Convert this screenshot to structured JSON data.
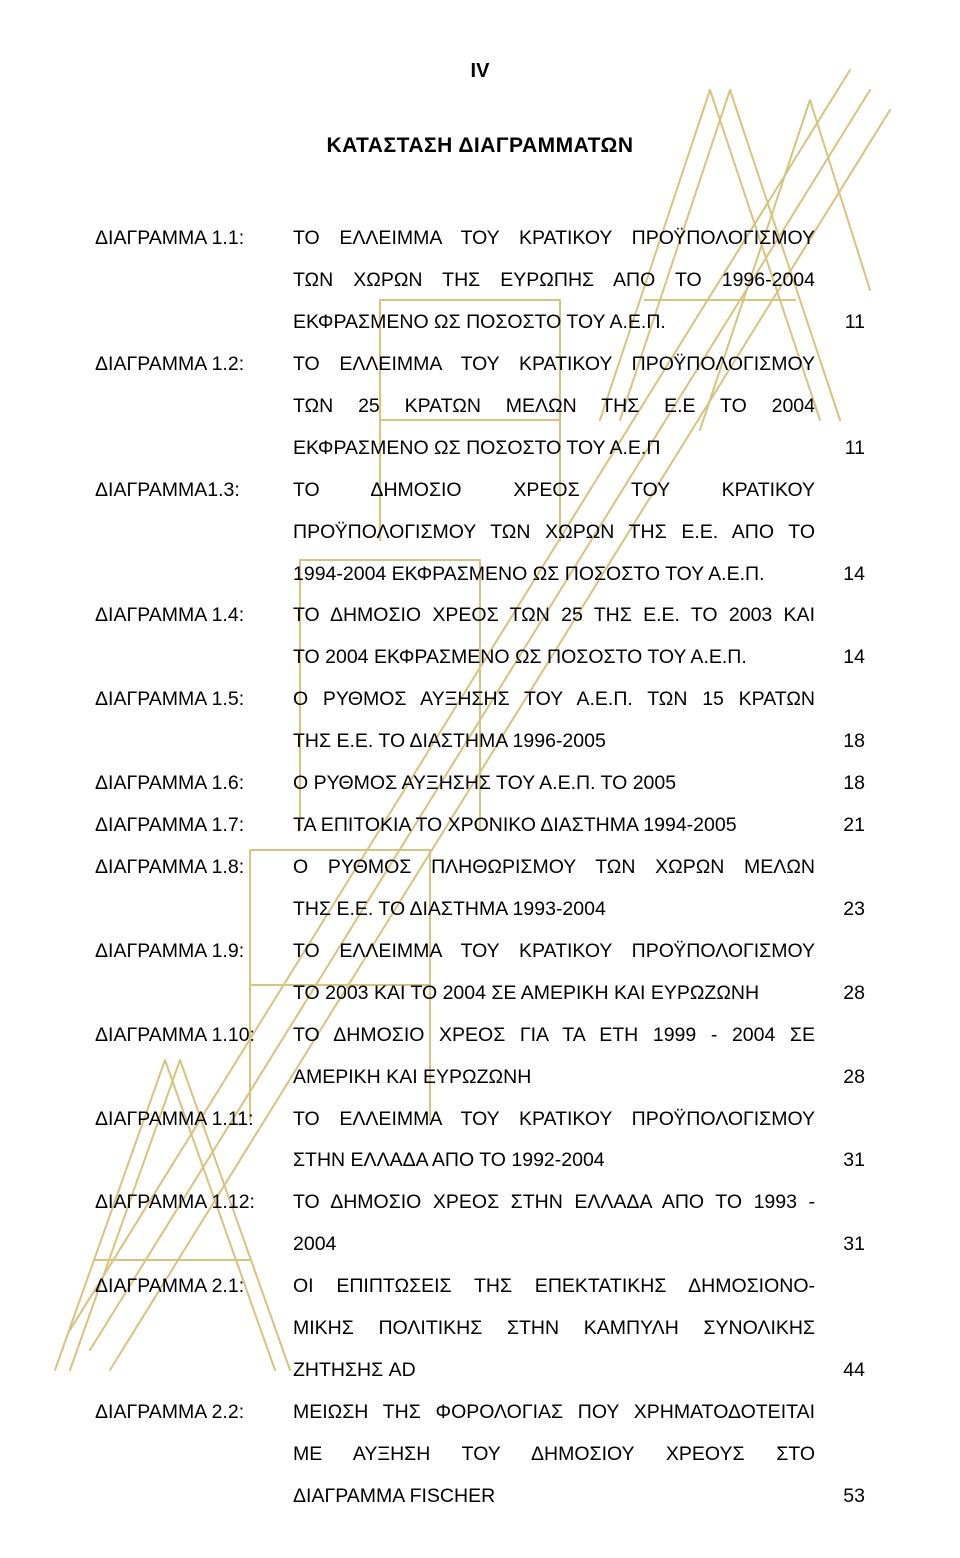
{
  "page_number_roman": "IV",
  "title": "ΚΑΤΑΣΤΑΣΗ ΔΙΑΓΡΑΜΜΑΤΩΝ",
  "watermark": {
    "stroke": "#d9c27a",
    "stroke_width": 2
  },
  "entries": [
    {
      "label": "ΔΙΑΓΡΑΜΜΑ 1.1:",
      "lines": [
        "ΤΟ ΕΛΛΕΙΜΜΑ ΤΟΥ ΚΡΑΤΙΚΟΥ ΠΡΟΫΠΟΛΟΓΙΣΜΟΥ",
        "ΤΩΝ ΧΩΡΩΝ ΤΗΣ ΕΥΡΩΠΗΣ ΑΠΟ ΤΟ 1996-2004",
        "ΕΚΦΡΑΣΜΕΝΟ ΩΣ ΠΟΣΟΣΤΟ ΤΟΥ Α.Ε.Π."
      ],
      "page": "11"
    },
    {
      "label": "ΔΙΑΓΡΑΜΜΑ 1.2:",
      "lines": [
        "ΤΟ ΕΛΛΕΙΜΜΑ ΤΟΥ ΚΡΑΤΙΚΟΥ ΠΡΟΫΠΟΛΟΓΙΣΜΟΥ",
        "ΤΩΝ 25 ΚΡΑΤΩΝ ΜΕΛΩΝ ΤΗΣ Ε.Ε ΤΟ 2004",
        "ΕΚΦΡΑΣΜΕΝΟ ΩΣ ΠΟΣΟΣΤΟ ΤΟΥ Α.Ε.Π"
      ],
      "page": "11"
    },
    {
      "label": "ΔΙΑΓΡΑΜΜΑ1.3:",
      "lines": [
        "ΤΟ ΔΗΜΟΣΙΟ ΧΡΕΟΣ ΤΟΥ ΚΡΑΤΙΚΟΥ",
        "ΠΡΟΫΠΟΛΟΓΙΣΜΟΥ ΤΩΝ ΧΩΡΩΝ ΤΗΣ Ε.Ε. ΑΠΟ ΤΟ",
        "1994-2004 ΕΚΦΡΑΣΜΕΝΟ ΩΣ ΠΟΣΟΣΤΟ ΤΟΥ Α.Ε.Π."
      ],
      "page": "14"
    },
    {
      "label": "ΔΙΑΓΡΑΜΜΑ 1.4:",
      "lines": [
        "ΤΟ ΔΗΜΟΣΙΟ ΧΡΕΟΣ ΤΩΝ 25 ΤΗΣ Ε.Ε. ΤΟ 2003 ΚΑΙ",
        "ΤΟ 2004 ΕΚΦΡΑΣΜΕΝΟ ΩΣ ΠΟΣΟΣΤΟ ΤΟΥ Α.Ε.Π."
      ],
      "page": "14"
    },
    {
      "label": "ΔΙΑΓΡΑΜΜΑ 1.5:",
      "lines": [
        "Ο ΡΥΘΜΟΣ ΑΥΞΗΣΗΣ ΤΟΥ Α.Ε.Π. ΤΩΝ 15 ΚΡΑΤΩΝ",
        "ΤΗΣ Ε.Ε. ΤΟ ΔΙΑΣΤΗΜΑ 1996-2005"
      ],
      "page": "18"
    },
    {
      "label": "ΔΙΑΓΡΑΜΜΑ 1.6:",
      "lines": [
        "Ο ΡΥΘΜΟΣ ΑΥΞΗΣΗΣ ΤΟΥ Α.Ε.Π. ΤΟ 2005"
      ],
      "page": "18"
    },
    {
      "label": "ΔΙΑΓΡΑΜΜΑ 1.7:",
      "lines": [
        "ΤΑ ΕΠΙΤΟΚΙΑ ΤΟ ΧΡΟΝΙΚΟ ΔΙΑΣΤΗΜΑ 1994-2005"
      ],
      "page": "21"
    },
    {
      "label": "ΔΙΑΓΡΑΜΜΑ 1.8:",
      "lines": [
        "Ο ΡΥΘΜΟΣ ΠΛΗΘΩΡΙΣΜΟΥ ΤΩΝ ΧΩΡΩΝ ΜΕΛΩΝ",
        "ΤΗΣ Ε.Ε. ΤΟ ΔΙΑΣΤΗΜΑ 1993-2004"
      ],
      "page": "23"
    },
    {
      "label": "ΔΙΑΓΡΑΜΜΑ 1.9:",
      "lines": [
        "ΤΟ ΕΛΛΕΙΜΜΑ ΤΟΥ ΚΡΑΤΙΚΟΥ ΠΡΟΫΠΟΛΟΓΙΣΜΟΥ",
        "ΤΟ 2003 ΚΑΙ ΤΟ 2004 ΣΕ ΑΜΕΡΙΚΗ ΚΑΙ ΕΥΡΩΖΩΝΗ"
      ],
      "page": "28"
    },
    {
      "label": "ΔΙΑΓΡΑΜΜΑ 1.10:",
      "lines": [
        "ΤΟ ΔΗΜΟΣΙΟ ΧΡΕΟΣ ΓΙΑ ΤΑ ΕΤΗ 1999 - 2004 ΣΕ",
        "ΑΜΕΡΙΚΗ ΚΑΙ ΕΥΡΩΖΩΝΗ"
      ],
      "page": "28"
    },
    {
      "label": "ΔΙΑΓΡΑΜΜΑ 1.11:",
      "lines": [
        "ΤΟ ΕΛΛΕΙΜΜΑ ΤΟΥ ΚΡΑΤΙΚΟΥ ΠΡΟΫΠΟΛΟΓΙΣΜΟΥ",
        "ΣΤΗΝ ΕΛΛΑΔΑ ΑΠΟ ΤΟ 1992-2004"
      ],
      "page": "31"
    },
    {
      "label": "ΔΙΑΓΡΑΜΜΑ 1.12:",
      "lines": [
        "ΤΟ ΔΗΜΟΣΙΟ ΧΡΕΟΣ ΣΤΗΝ ΕΛΛΑΔΑ ΑΠΟ ΤΟ 1993 -",
        "2004"
      ],
      "page": "31"
    },
    {
      "label": "ΔΙΑΓΡΑΜΜΑ 2.1:",
      "lines": [
        "ΟΙ ΕΠΙΠΤΩΣΕΙΣ ΤΗΣ ΕΠΕΚΤΑΤΙΚΗΣ ΔΗΜΟΣΙΟΝΟ-",
        "ΜΙΚΗΣ ΠΟΛΙΤΙΚΗΣ ΣΤΗΝ ΚΑΜΠΥΛΗ ΣΥΝΟΛΙΚΗΣ",
        "ΖΗΤΗΣΗΣ AD"
      ],
      "page": "44"
    },
    {
      "label": "ΔΙΑΓΡΑΜΜΑ 2.2:",
      "lines": [
        "ΜΕΙΩΣΗ ΤΗΣ ΦΟΡΟΛΟΓΙΑΣ ΠΟΥ ΧΡΗΜΑΤΟΔΟΤΕΙΤΑΙ",
        "ΜΕ ΑΥΞΗΣΗ ΤΟΥ ΔΗΜΟΣΙΟΥ ΧΡΕΟΥΣ ΣΤΟ",
        "ΔΙΑΓΡΑΜΜΑ FISCHER"
      ],
      "page": "53"
    }
  ]
}
